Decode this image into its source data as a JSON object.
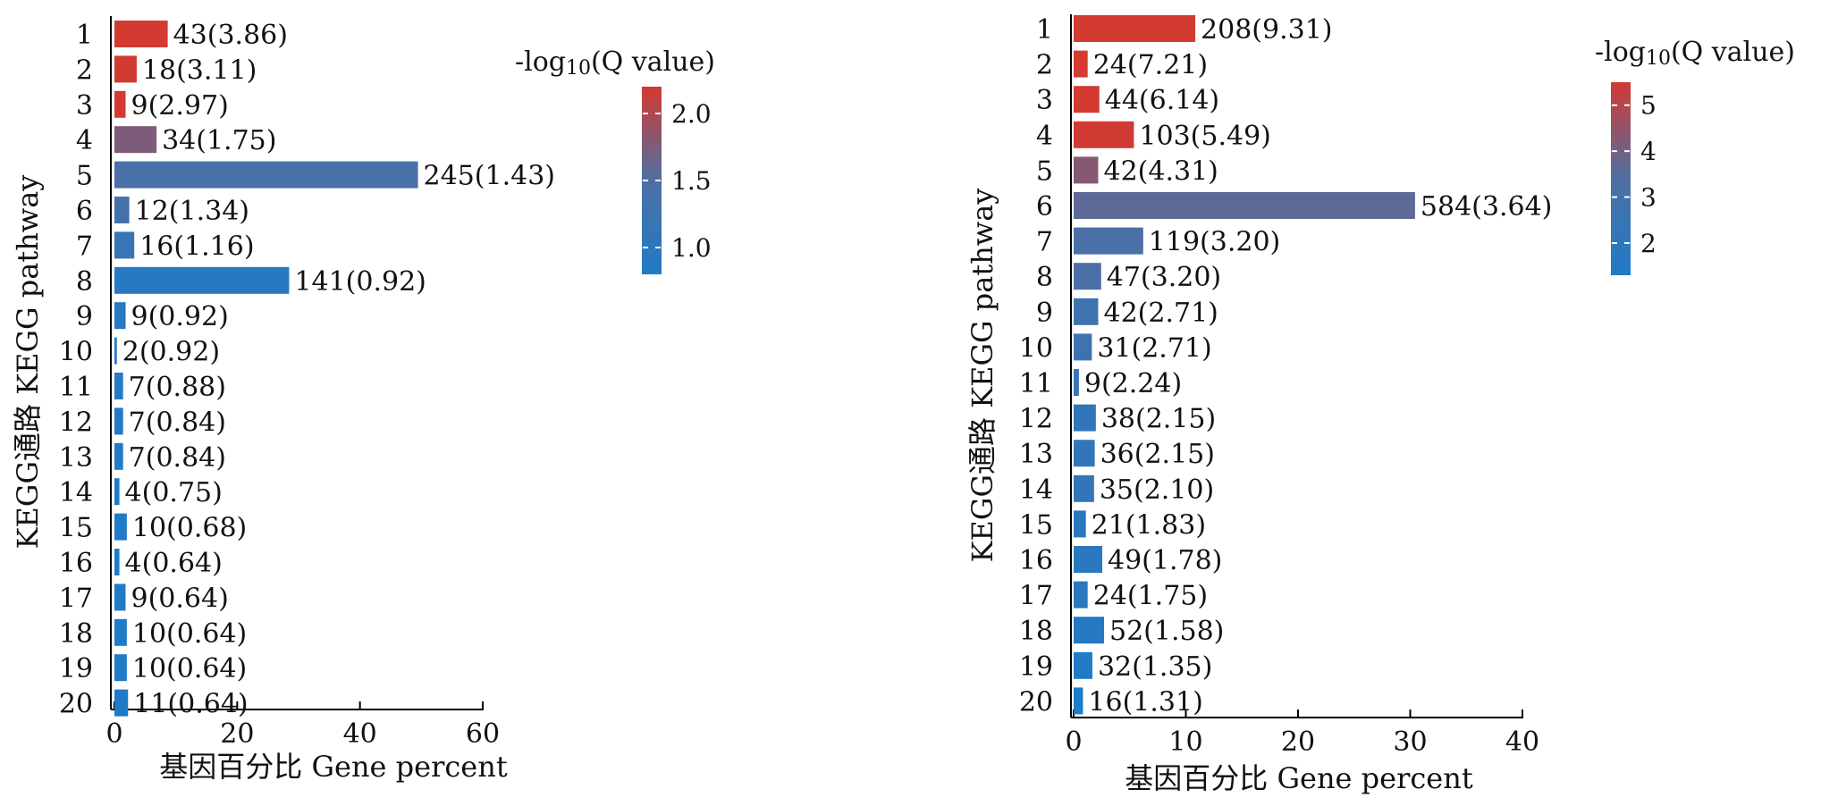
{
  "chart_data": [
    {
      "type": "bar",
      "orientation": "horizontal",
      "categories": [
        "1",
        "2",
        "3",
        "4",
        "5",
        "6",
        "7",
        "8",
        "9",
        "10",
        "11",
        "12",
        "13",
        "14",
        "15",
        "16",
        "17",
        "18",
        "19",
        "20"
      ],
      "values": [
        8.68,
        3.63,
        1.82,
        6.86,
        49.45,
        2.42,
        3.23,
        28.46,
        1.82,
        0.4,
        1.41,
        1.41,
        1.41,
        0.81,
        2.02,
        0.81,
        1.82,
        2.02,
        2.02,
        2.22
      ],
      "gene_counts": [
        43,
        18,
        9,
        34,
        245,
        12,
        16,
        141,
        9,
        2,
        7,
        7,
        7,
        4,
        10,
        4,
        9,
        10,
        10,
        11
      ],
      "neg_log10_q": [
        3.86,
        3.11,
        2.97,
        1.75,
        1.43,
        1.34,
        1.16,
        0.92,
        0.92,
        0.92,
        0.88,
        0.84,
        0.84,
        0.75,
        0.68,
        0.64,
        0.64,
        0.64,
        0.64,
        0.64
      ],
      "bar_labels": [
        "43(3.86)",
        "18(3.11)",
        "9(2.97)",
        "34(1.75)",
        "245(1.43)",
        "12(1.34)",
        "16(1.16)",
        "141(0.92)",
        "9(0.92)",
        "2(0.92)",
        "7(0.88)",
        "7(0.84)",
        "7(0.84)",
        "4(0.75)",
        "10(0.68)",
        "4(0.64)",
        "9(0.64)",
        "10(0.64)",
        "10(0.64)",
        "11(0.64)"
      ],
      "xlabel": "基因百分比 Gene percent",
      "ylabel": "KEGG通路 KEGG pathway",
      "xlim": [
        0,
        60
      ],
      "xticks": [
        "0",
        "20",
        "40",
        "60"
      ],
      "colorbar": {
        "title_prefix": "-log",
        "title_sub": "10",
        "title_suffix": "(Q value)",
        "range": [
          0.8,
          2.2
        ],
        "ticks": [
          "1.0",
          "1.5",
          "2.0"
        ],
        "tick_values": [
          1.0,
          1.5,
          2.0
        ],
        "low_color": "#1f7bc8",
        "mid_color": "#4e6fa3",
        "high_color": "#d23a32"
      },
      "grid": false
    },
    {
      "type": "bar",
      "orientation": "horizontal",
      "categories": [
        "1",
        "2",
        "3",
        "4",
        "5",
        "6",
        "7",
        "8",
        "9",
        "10",
        "11",
        "12",
        "13",
        "14",
        "15",
        "16",
        "17",
        "18",
        "19",
        "20"
      ],
      "values": [
        10.84,
        1.25,
        2.29,
        5.37,
        2.19,
        30.43,
        6.2,
        2.45,
        2.19,
        1.62,
        0.47,
        1.98,
        1.88,
        1.82,
        1.09,
        2.55,
        1.25,
        2.71,
        1.67,
        0.83
      ],
      "gene_counts": [
        208,
        24,
        44,
        103,
        42,
        584,
        119,
        47,
        42,
        31,
        9,
        38,
        36,
        35,
        21,
        49,
        24,
        52,
        32,
        16
      ],
      "neg_log10_q": [
        9.31,
        7.21,
        6.14,
        5.49,
        4.31,
        3.64,
        3.2,
        3.2,
        2.71,
        2.71,
        2.24,
        2.15,
        2.15,
        2.1,
        1.83,
        1.78,
        1.75,
        1.58,
        1.35,
        1.31
      ],
      "bar_labels": [
        "208(9.31)",
        "24(7.21)",
        "44(6.14)",
        "103(5.49)",
        "42(4.31)",
        "584(3.64)",
        "119(3.20)",
        "47(3.20)",
        "42(2.71)",
        "31(2.71)",
        "9(2.24)",
        "38(2.15)",
        "36(2.15)",
        "35(2.10)",
        "21(1.83)",
        "49(1.78)",
        "24(1.75)",
        "52(1.58)",
        "32(1.35)",
        "16(1.31)"
      ],
      "xlabel": "基因百分比 Gene percent",
      "ylabel": "KEGG通路 KEGG pathway",
      "xlim": [
        0,
        40
      ],
      "xticks": [
        "0",
        "10",
        "20",
        "30",
        "40"
      ],
      "colorbar": {
        "title_prefix": "-log",
        "title_sub": "10",
        "title_suffix": "(Q value)",
        "range": [
          1.3,
          5.5
        ],
        "ticks": [
          "2",
          "3",
          "4",
          "5"
        ],
        "tick_values": [
          2,
          3,
          4,
          5
        ],
        "low_color": "#1f7bc8",
        "mid_color": "#4e6fa3",
        "high_color": "#d23a32"
      },
      "grid": false
    }
  ]
}
